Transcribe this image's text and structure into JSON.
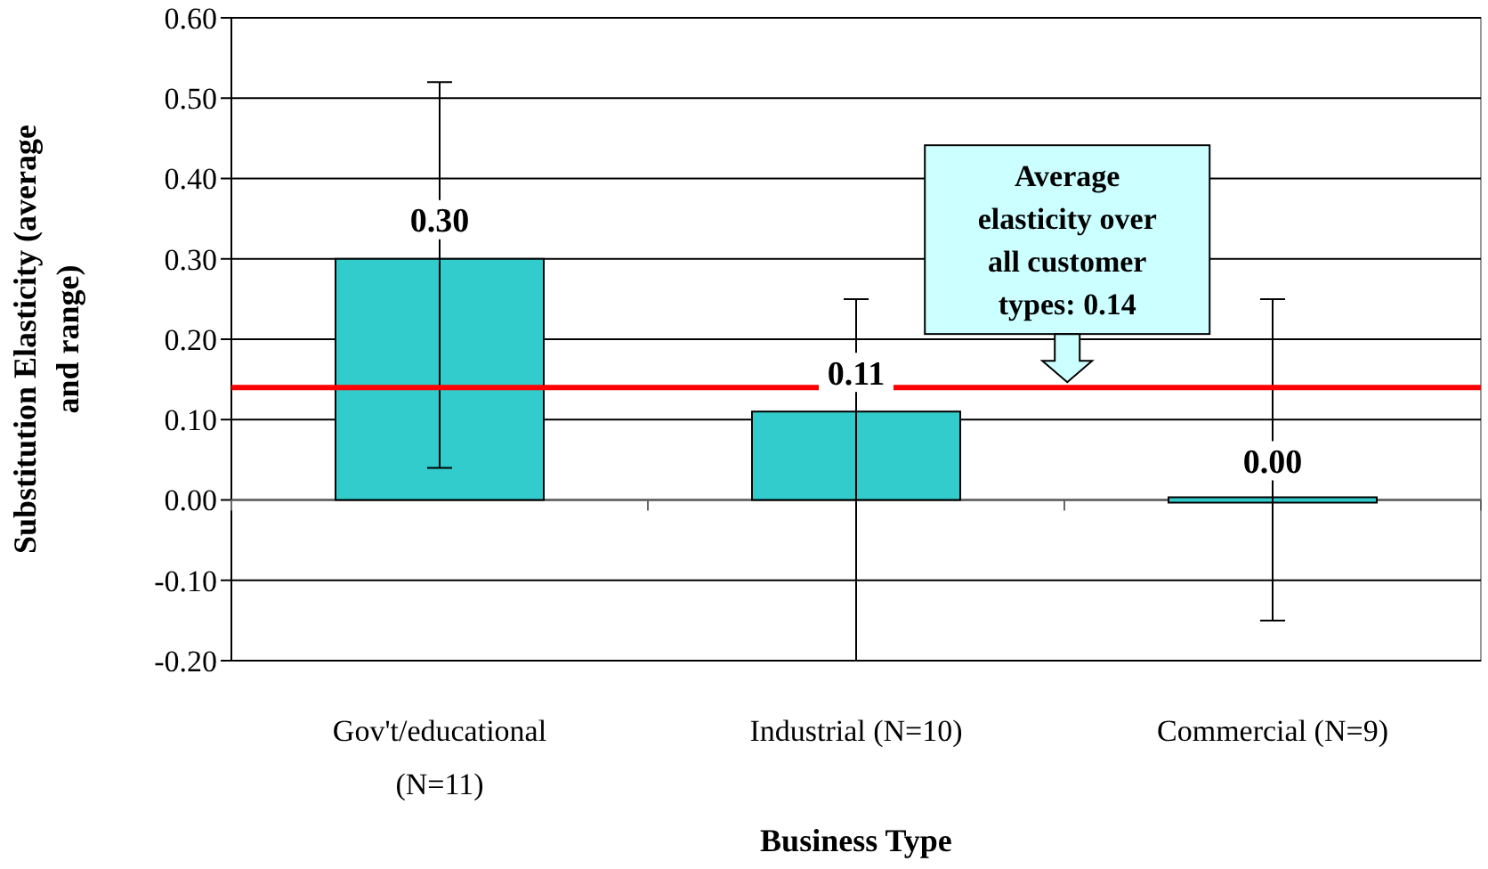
{
  "chart_data": {
    "type": "bar",
    "xlabel": "Business Type",
    "ylabel": "Substitution Elasticity (average and range)",
    "categories": [
      "Gov't/educational (N=11)",
      "Industrial (N=10)",
      "Commercial (N=9)"
    ],
    "values": [
      0.3,
      0.11,
      0
    ],
    "color": "#33cccc",
    "errors": [
      [
        0.04,
        0.52
      ],
      [
        -0.2,
        0.25
      ],
      [
        -0.15,
        0.25
      ]
    ],
    "value_labels": [
      "0.30",
      "0.11",
      "0.00"
    ],
    "ylim": [
      -0.2,
      0.6
    ],
    "yticks": [
      {
        "value": -0.2,
        "label": "-0.20"
      },
      {
        "value": -0.1,
        "label": "-0.10"
      },
      {
        "value": 0,
        "label": "0.00"
      },
      {
        "value": 0.1,
        "label": "0.10"
      },
      {
        "value": 0.2,
        "label": "0.20"
      },
      {
        "value": 0.3,
        "label": "0.30"
      },
      {
        "value": 0.4,
        "label": "0.40"
      },
      {
        "value": 0.5,
        "label": "0.50"
      },
      {
        "value": 0.6,
        "label": "0.60"
      }
    ],
    "grid": "y",
    "ref_lines": [
      {
        "axis": "y",
        "value": 0.14,
        "label": "Average elasticity over all customer types: 0.14",
        "color": "#ff0000"
      }
    ]
  }
}
